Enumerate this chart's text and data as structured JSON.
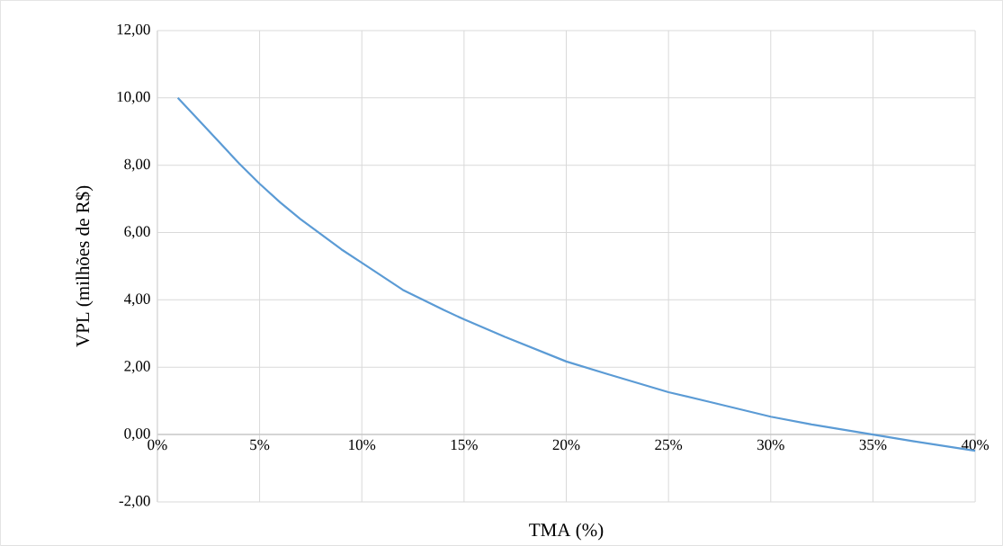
{
  "chart_data": {
    "type": "line",
    "xlabel": "TMA (%)",
    "ylabel": "VPL (milhões de R$)",
    "x": [
      1,
      2,
      3,
      4,
      5,
      6,
      7,
      8,
      9,
      10,
      12,
      14,
      15,
      17,
      20,
      22,
      25,
      27,
      30,
      32,
      35,
      37,
      40
    ],
    "series": [
      {
        "color": "#5b9bd5",
        "values": [
          10.0,
          9.35,
          8.7,
          8.05,
          7.45,
          6.9,
          6.4,
          5.95,
          5.5,
          5.1,
          4.3,
          3.7,
          3.42,
          2.9,
          2.17,
          1.8,
          1.26,
          0.97,
          0.53,
          0.3,
          0.0,
          -0.2,
          -0.48
        ]
      }
    ],
    "xlim": [
      0,
      40
    ],
    "ylim": [
      -2,
      12
    ],
    "xticks": [
      {
        "value": 0,
        "label": "0%"
      },
      {
        "value": 5,
        "label": "5%"
      },
      {
        "value": 10,
        "label": "10%"
      },
      {
        "value": 15,
        "label": "15%"
      },
      {
        "value": 20,
        "label": "20%"
      },
      {
        "value": 25,
        "label": "25%"
      },
      {
        "value": 30,
        "label": "30%"
      },
      {
        "value": 35,
        "label": "35%"
      },
      {
        "value": 40,
        "label": "40%"
      }
    ],
    "yticks": [
      {
        "value": -2,
        "label": "-2,00"
      },
      {
        "value": 0,
        "label": "0,00"
      },
      {
        "value": 2,
        "label": "2,00"
      },
      {
        "value": 4,
        "label": "4,00"
      },
      {
        "value": 6,
        "label": "6,00"
      },
      {
        "value": 8,
        "label": "8,00"
      },
      {
        "value": 10,
        "label": "10,00"
      },
      {
        "value": 12,
        "label": "12,00"
      }
    ],
    "grid": true,
    "legend": false,
    "marker": "none",
    "line_style": "solid"
  }
}
